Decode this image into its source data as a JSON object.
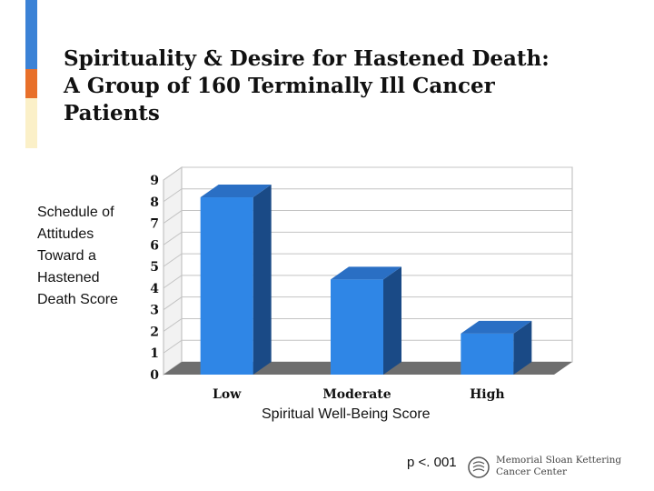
{
  "slide": {
    "title_lines": [
      "Spirituality & Desire for Hastened Death:",
      "A Group of 160 Terminally Ill Cancer",
      "Patients"
    ],
    "y_axis_label_lines": [
      "Schedule of",
      "Attitudes",
      "Toward a",
      "Hastened",
      "Death Score"
    ],
    "x_axis_label": "Spiritual Well-Being Score",
    "p_value": "p <. 001",
    "logo": {
      "icon": "msk-seal-icon",
      "lines": [
        "Memorial Sloan Kettering",
        "Cancer Center"
      ]
    }
  },
  "colors": {
    "bar_front": "#2f86e6",
    "bar_side": "#1a4a86",
    "bar_top": "#2a6fc4",
    "floor": "#6e6e6e",
    "accent_blue": "#3b82d6",
    "accent_orange": "#e8702a",
    "accent_cream": "#fbf0c8"
  },
  "chart_data": {
    "type": "bar",
    "categories": [
      "Low",
      "Moderate",
      "High"
    ],
    "values": [
      8.2,
      4.4,
      1.9
    ],
    "title": "Spirituality & Desire for Hastened Death: A Group of 160 Terminally Ill Cancer Patients",
    "xlabel": "Spiritual Well-Being Score",
    "ylabel": "Schedule of Attitudes Toward a Hastened Death Score",
    "ylim": [
      0,
      9
    ],
    "yticks": [
      0,
      1,
      2,
      3,
      4,
      5,
      6,
      7,
      8,
      9
    ],
    "grid": true,
    "style": "3d"
  }
}
